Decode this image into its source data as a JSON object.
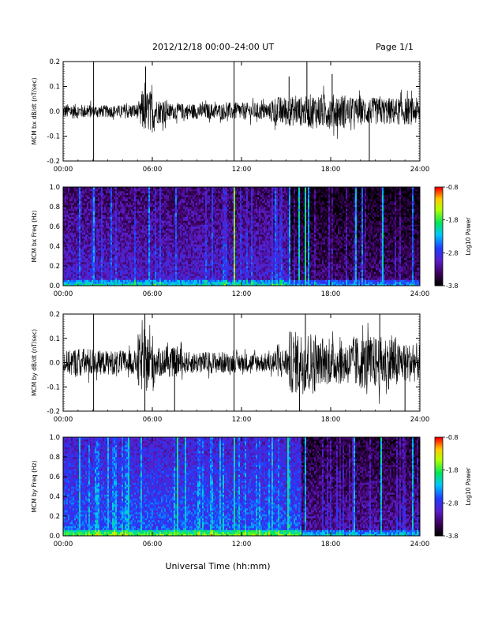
{
  "header": {
    "title": "2012/12/18  00:00–24:00 UT",
    "page": "Page 1/1"
  },
  "xlabel": "Universal Time (hh:mm)",
  "x_ticks": [
    "00:00",
    "06:00",
    "12:00",
    "18:00",
    "24:00"
  ],
  "chart_data": [
    {
      "type": "line",
      "ylabel": "MCM bx dB/dt (nT/sec)",
      "xlim": [
        0,
        24
      ],
      "ylim": [
        -0.2,
        0.2
      ],
      "y_ticks": [
        "-0.2",
        "-0.1",
        "0.0",
        "0.1",
        "0.2"
      ],
      "segments": [
        {
          "t": [
            0,
            1.0
          ],
          "amp": 0.03
        },
        {
          "t": [
            1.0,
            2.0
          ],
          "amp": 0.028
        },
        {
          "t": [
            2.0,
            4.0
          ],
          "amp": 0.025
        },
        {
          "t": [
            4.0,
            5.2
          ],
          "amp": 0.03
        },
        {
          "t": [
            5.2,
            6.2
          ],
          "amp": 0.085
        },
        {
          "t": [
            6.2,
            7.0
          ],
          "amp": 0.05
        },
        {
          "t": [
            7.0,
            11.0
          ],
          "amp": 0.032
        },
        {
          "t": [
            11.0,
            14.0
          ],
          "amp": 0.035
        },
        {
          "t": [
            14.0,
            16.5
          ],
          "amp": 0.06
        },
        {
          "t": [
            16.5,
            19.0
          ],
          "amp": 0.07
        },
        {
          "t": [
            19.0,
            24.0
          ],
          "amp": 0.055
        }
      ],
      "spikes": [
        {
          "t": 2.05,
          "y": 0.2
        },
        {
          "t": 2.05,
          "y": -0.2
        },
        {
          "t": 11.5,
          "y": 0.2
        },
        {
          "t": 11.5,
          "y": -0.2
        },
        {
          "t": 20.6,
          "y": -0.2
        },
        {
          "t": 16.4,
          "y": 0.2
        },
        {
          "t": 5.55,
          "y": 0.18
        },
        {
          "t": 15.2,
          "y": 0.14
        },
        {
          "t": 18.1,
          "y": 0.15
        }
      ]
    },
    {
      "type": "heatmap",
      "ylabel": "MCM bx Freq (Hz)",
      "xlim": [
        0,
        24
      ],
      "ylim": [
        0.0,
        1.0
      ],
      "y_ticks": [
        "0.0",
        "0.2",
        "0.4",
        "0.6",
        "0.8",
        "1.0"
      ],
      "colorbar": {
        "label": "Log10 Power",
        "ticks": [
          "-0.8",
          "-1.8",
          "-2.8",
          "-3.8"
        ],
        "range": [
          -3.8,
          -0.8
        ]
      },
      "background_level": -3.0,
      "bright_columns": [
        {
          "t": 1.1,
          "level": -2.6
        },
        {
          "t": 2.0,
          "level": -2.4
        },
        {
          "t": 3.2,
          "level": -2.6
        },
        {
          "t": 5.7,
          "level": -2.5
        },
        {
          "t": 7.5,
          "level": -2.6
        },
        {
          "t": 10.0,
          "level": -2.7
        },
        {
          "t": 11.5,
          "level": -1.6
        },
        {
          "t": 14.2,
          "level": -2.6
        },
        {
          "t": 15.2,
          "level": -2.4
        },
        {
          "t": 15.8,
          "level": -2.2
        },
        {
          "t": 16.3,
          "level": -2.0
        },
        {
          "t": 16.5,
          "level": -2.3
        },
        {
          "t": 19.6,
          "level": -2.3
        },
        {
          "t": 20.1,
          "level": -2.5
        },
        {
          "t": 21.4,
          "level": -2.2
        },
        {
          "t": 23.5,
          "level": -2.6
        }
      ]
    },
    {
      "type": "line",
      "ylabel": "MCM by dB/dt (nT/sec)",
      "xlim": [
        0,
        24
      ],
      "ylim": [
        -0.2,
        0.2
      ],
      "y_ticks": [
        "-0.2",
        "-0.1",
        "0.0",
        "0.1",
        "0.2"
      ],
      "segments": [
        {
          "t": [
            0,
            0.5
          ],
          "amp": 0.05
        },
        {
          "t": [
            0.5,
            2.0
          ],
          "amp": 0.06
        },
        {
          "t": [
            2.0,
            5.0
          ],
          "amp": 0.05
        },
        {
          "t": [
            5.0,
            6.2
          ],
          "amp": 0.12
        },
        {
          "t": [
            6.2,
            8.0
          ],
          "amp": 0.06
        },
        {
          "t": [
            8.0,
            11.0
          ],
          "amp": 0.045
        },
        {
          "t": [
            11.0,
            14.0
          ],
          "amp": 0.04
        },
        {
          "t": [
            14.0,
            15.2
          ],
          "amp": 0.06
        },
        {
          "t": [
            15.2,
            17.0
          ],
          "amp": 0.13
        },
        {
          "t": [
            17.0,
            19.5
          ],
          "amp": 0.09
        },
        {
          "t": [
            19.5,
            22.5
          ],
          "amp": 0.11
        },
        {
          "t": [
            22.5,
            24.0
          ],
          "amp": 0.08
        }
      ],
      "spikes": [
        {
          "t": 2.05,
          "y": 0.2
        },
        {
          "t": 2.05,
          "y": -0.2
        },
        {
          "t": 5.5,
          "y": 0.2
        },
        {
          "t": 5.5,
          "y": -0.2
        },
        {
          "t": 11.5,
          "y": 0.2
        },
        {
          "t": 11.5,
          "y": -0.2
        },
        {
          "t": 15.9,
          "y": -0.2
        },
        {
          "t": 16.3,
          "y": 0.2
        },
        {
          "t": 7.5,
          "y": -0.2
        },
        {
          "t": 21.3,
          "y": 0.2
        },
        {
          "t": 23.0,
          "y": -0.2
        }
      ]
    },
    {
      "type": "heatmap",
      "ylabel": "MCM by Freq (Hz)",
      "xlim": [
        0,
        24
      ],
      "ylim": [
        0.0,
        1.0
      ],
      "y_ticks": [
        "0.0",
        "0.2",
        "0.4",
        "0.6",
        "0.8",
        "1.0"
      ],
      "colorbar": {
        "label": "Log10 Power",
        "ticks": [
          "-0.8",
          "-1.8",
          "-2.8",
          "-3.8"
        ],
        "range": [
          -3.8,
          -0.8
        ]
      },
      "background_level": -2.6,
      "active_until": 16.0,
      "bright_columns": [
        {
          "t": 1.1,
          "level": -2.2
        },
        {
          "t": 3.0,
          "level": -2.3
        },
        {
          "t": 4.4,
          "level": -2.2
        },
        {
          "t": 5.2,
          "level": -2.3
        },
        {
          "t": 7.6,
          "level": -2.0
        },
        {
          "t": 8.2,
          "level": -2.2
        },
        {
          "t": 10.5,
          "level": -2.3
        },
        {
          "t": 11.5,
          "level": -2.1
        },
        {
          "t": 14.0,
          "level": -2.3
        },
        {
          "t": 15.1,
          "level": -2.0
        },
        {
          "t": 16.3,
          "level": -2.3
        },
        {
          "t": 19.5,
          "level": -2.4
        },
        {
          "t": 21.3,
          "level": -2.2
        },
        {
          "t": 23.5,
          "level": -2.3
        }
      ]
    }
  ]
}
